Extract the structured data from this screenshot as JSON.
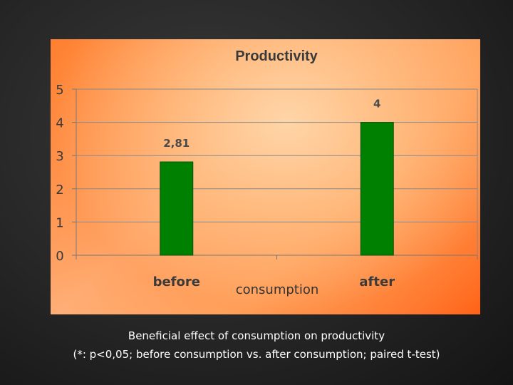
{
  "chart_data": {
    "type": "bar",
    "title": "Productivity",
    "xlabel": "consumption",
    "ylabel": "",
    "categories": [
      "before",
      "after"
    ],
    "values": [
      2.81,
      4
    ],
    "value_labels": [
      "2,81",
      "4"
    ],
    "ylim": [
      0,
      5
    ],
    "yticks": [
      0,
      1,
      2,
      3,
      4,
      5
    ],
    "ytick_labels": [
      "0",
      "1",
      "2",
      "3",
      "4",
      "5"
    ],
    "grid": true,
    "bar_color": "#008000",
    "legend": "none"
  },
  "caption": {
    "line1": "Beneficial effect of consumption on productivity",
    "line2": "(*: p<0,05; before consumption vs. after consumption; paired t-test)"
  }
}
